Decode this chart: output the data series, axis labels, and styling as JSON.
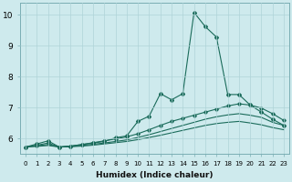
{
  "xlabel": "Humidex (Indice chaleur)",
  "bg_color": "#ceeaed",
  "grid_color": "#afd4d8",
  "line_color": "#1a6b5a",
  "xlim": [
    -0.5,
    23.5
  ],
  "ylim": [
    5.5,
    10.4
  ],
  "xticks": [
    0,
    1,
    2,
    3,
    4,
    5,
    6,
    7,
    8,
    9,
    10,
    11,
    12,
    13,
    14,
    15,
    16,
    17,
    18,
    19,
    20,
    21,
    22,
    23
  ],
  "yticks": [
    6,
    7,
    8,
    9,
    10
  ],
  "line1_x": [
    0,
    1,
    2,
    3,
    4,
    5,
    6,
    7,
    8,
    9,
    10,
    11,
    12,
    13,
    14,
    15,
    16,
    17,
    18,
    19,
    20,
    21,
    22,
    23
  ],
  "line1_y": [
    5.72,
    5.82,
    5.92,
    5.72,
    5.75,
    5.8,
    5.85,
    5.9,
    6.02,
    6.08,
    6.55,
    6.72,
    7.45,
    7.25,
    7.45,
    10.08,
    9.62,
    9.28,
    7.42,
    7.42,
    7.08,
    6.85,
    6.62,
    6.42
  ],
  "line2_x": [
    0,
    1,
    2,
    3,
    4,
    5,
    6,
    7,
    8,
    9,
    10,
    11,
    12,
    13,
    14,
    15,
    16,
    17,
    18,
    19,
    20,
    21,
    22,
    23
  ],
  "line2_y": [
    5.72,
    5.78,
    5.85,
    5.72,
    5.75,
    5.8,
    5.86,
    5.92,
    5.98,
    6.05,
    6.15,
    6.28,
    6.42,
    6.55,
    6.65,
    6.75,
    6.85,
    6.95,
    7.05,
    7.12,
    7.08,
    6.98,
    6.8,
    6.58
  ],
  "line3_x": [
    0,
    1,
    2,
    3,
    4,
    5,
    6,
    7,
    8,
    9,
    10,
    11,
    12,
    13,
    14,
    15,
    16,
    17,
    18,
    19,
    20,
    21,
    22,
    23
  ],
  "line3_y": [
    5.72,
    5.76,
    5.8,
    5.72,
    5.74,
    5.77,
    5.81,
    5.85,
    5.9,
    5.95,
    6.03,
    6.12,
    6.22,
    6.32,
    6.42,
    6.52,
    6.62,
    6.7,
    6.76,
    6.8,
    6.75,
    6.68,
    6.52,
    6.42
  ],
  "line4_x": [
    0,
    1,
    2,
    3,
    4,
    5,
    6,
    7,
    8,
    9,
    10,
    11,
    12,
    13,
    14,
    15,
    16,
    17,
    18,
    19,
    20,
    21,
    22,
    23
  ],
  "line4_y": [
    5.72,
    5.74,
    5.77,
    5.72,
    5.73,
    5.75,
    5.78,
    5.82,
    5.86,
    5.9,
    5.96,
    6.03,
    6.1,
    6.18,
    6.26,
    6.34,
    6.42,
    6.48,
    6.52,
    6.55,
    6.5,
    6.44,
    6.35,
    6.28
  ]
}
